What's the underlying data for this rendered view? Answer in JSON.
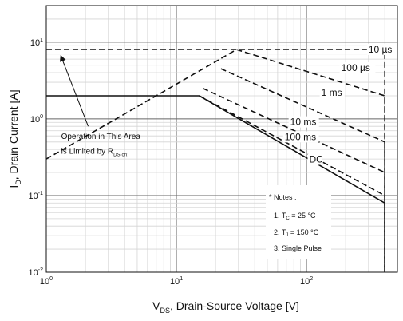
{
  "chart_data": {
    "type": "line",
    "title": "",
    "xlabel": {
      "main": "V",
      "sub": "DS",
      "rest": ", Drain-Source Voltage [V]"
    },
    "ylabel": {
      "main": "I",
      "sub": "D",
      "rest": ", Drain Current [A]"
    },
    "x_scale": "log",
    "y_scale": "log",
    "xlim": [
      1,
      500
    ],
    "ylim": [
      0.01,
      30
    ],
    "grid": true,
    "x_ticks": [
      {
        "value": 1,
        "base": "10",
        "exp": "0"
      },
      {
        "value": 10,
        "base": "10",
        "exp": "1"
      },
      {
        "value": 100,
        "base": "10",
        "exp": "2"
      }
    ],
    "y_ticks": [
      {
        "value": 0.01,
        "base": "10",
        "exp": "-2"
      },
      {
        "value": 0.1,
        "base": "10",
        "exp": "-1"
      },
      {
        "value": 1,
        "base": "10",
        "exp": "0"
      },
      {
        "value": 10,
        "base": "10",
        "exp": "1"
      }
    ],
    "series": [
      {
        "name": "10 µs",
        "style": "dashed",
        "points": [
          [
            1,
            8
          ],
          [
            400,
            8
          ],
          [
            400,
            0.01
          ]
        ]
      },
      {
        "name": "100 µs",
        "style": "dashed",
        "points": [
          [
            29,
            8
          ],
          [
            400,
            2.0
          ],
          [
            400,
            0.01
          ]
        ]
      },
      {
        "name": "1 ms",
        "style": "dashed",
        "points": [
          [
            22,
            4.5
          ],
          [
            400,
            0.5
          ],
          [
            400,
            0.01
          ]
        ]
      },
      {
        "name": "10 ms",
        "style": "dashed",
        "points": [
          [
            16,
            2.5
          ],
          [
            400,
            0.2
          ],
          [
            400,
            0.01
          ]
        ]
      },
      {
        "name": "100 ms",
        "style": "dashed",
        "points": [
          [
            15,
            2.0
          ],
          [
            400,
            0.1
          ],
          [
            400,
            0.01
          ]
        ]
      },
      {
        "name": "DC",
        "style": "solid",
        "points": [
          [
            1,
            2.0
          ],
          [
            15,
            2.0
          ],
          [
            400,
            0.08
          ],
          [
            400,
            0.01
          ]
        ]
      },
      {
        "name": "",
        "style": "dashed",
        "points": [
          [
            1,
            0.3
          ],
          [
            29,
            8
          ]
        ]
      }
    ],
    "labels": [
      {
        "text": "10 µs",
        "x": 300,
        "y": 7.3
      },
      {
        "text": "100 µs",
        "x": 185,
        "y": 4.2
      },
      {
        "text": "1 ms",
        "x": 130,
        "y": 2.0
      },
      {
        "text": "10 ms",
        "x": 75,
        "y": 0.83
      },
      {
        "text": "100 ms",
        "x": 68,
        "y": 0.53
      },
      {
        "text": "DC",
        "x": 105,
        "y": 0.27
      }
    ],
    "annotation": {
      "line1": "Operation in This Area",
      "line2_main": "is Limited by R",
      "line2_sub": "DS(on)",
      "arrow_from": [
        2.1,
        0.8
      ],
      "arrow_to": [
        1.3,
        6.5
      ],
      "text_x": 1.3,
      "text_y1": 0.55,
      "text_y2": 0.35
    },
    "notes": {
      "title": "* Notes :",
      "items": [
        {
          "prefix": "1. T",
          "sub": "C",
          "rest": " = 25 °C"
        },
        {
          "prefix": "2. T",
          "sub": "J",
          "rest": " = 150 °C"
        },
        {
          "prefix": "3. Single Pulse",
          "sub": "",
          "rest": ""
        }
      ]
    }
  }
}
